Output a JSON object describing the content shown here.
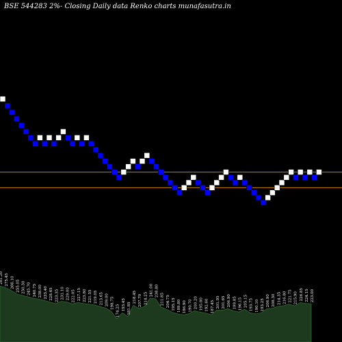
{
  "header": {
    "title": "BSE 544283 2%-  Closing Daily data  Renko  charts munafasutra.in"
  },
  "colors": {
    "background": "#000000",
    "up_brick": "#ffffff",
    "down_brick": "#0000ff",
    "brick_border": "#000000",
    "level_line": "#cc8400",
    "volume_fill": "#1e3a1e",
    "volume_edge": "#2e6a2e"
  },
  "chart_data": {
    "type": "renko",
    "brick_percent": 2,
    "bricks": [
      {
        "dir": "up",
        "close": 273.6
      },
      {
        "dir": "down",
        "close": 268.1
      },
      {
        "dir": "down",
        "close": 262.8
      },
      {
        "dir": "down",
        "close": 257.5
      },
      {
        "dir": "down",
        "close": 252.4
      },
      {
        "dir": "down",
        "close": 247.3
      },
      {
        "dir": "down",
        "close": 242.4
      },
      {
        "dir": "down",
        "close": 237.5
      },
      {
        "dir": "up",
        "close": 242.4
      },
      {
        "dir": "down",
        "close": 237.5
      },
      {
        "dir": "up",
        "close": 242.4
      },
      {
        "dir": "down",
        "close": 237.5
      },
      {
        "dir": "up",
        "close": 242.4
      },
      {
        "dir": "up",
        "close": 247.3
      },
      {
        "dir": "down",
        "close": 242.4
      },
      {
        "dir": "down",
        "close": 237.5
      },
      {
        "dir": "up",
        "close": 242.4
      },
      {
        "dir": "down",
        "close": 237.5
      },
      {
        "dir": "up",
        "close": 242.4
      },
      {
        "dir": "down",
        "close": 237.5
      },
      {
        "dir": "down",
        "close": 232.7
      },
      {
        "dir": "down",
        "close": 228.1
      },
      {
        "dir": "down",
        "close": 223.5
      },
      {
        "dir": "down",
        "close": 219.1
      },
      {
        "dir": "down",
        "close": 214.7
      },
      {
        "dir": "down",
        "close": 210.4
      },
      {
        "dir": "up",
        "close": 214.7
      },
      {
        "dir": "up",
        "close": 219.1
      },
      {
        "dir": "up",
        "close": 223.5
      },
      {
        "dir": "down",
        "close": 219.1
      },
      {
        "dir": "up",
        "close": 223.5
      },
      {
        "dir": "up",
        "close": 228.1
      },
      {
        "dir": "down",
        "close": 223.5
      },
      {
        "dir": "down",
        "close": 219.1
      },
      {
        "dir": "down",
        "close": 214.7
      },
      {
        "dir": "down",
        "close": 210.4
      },
      {
        "dir": "down",
        "close": 206.2
      },
      {
        "dir": "down",
        "close": 202.1
      },
      {
        "dir": "down",
        "close": 198.1
      },
      {
        "dir": "up",
        "close": 202.1
      },
      {
        "dir": "up",
        "close": 206.2
      },
      {
        "dir": "up",
        "close": 210.4
      },
      {
        "dir": "down",
        "close": 206.2
      },
      {
        "dir": "down",
        "close": 202.1
      },
      {
        "dir": "down",
        "close": 198.1
      },
      {
        "dir": "up",
        "close": 202.1
      },
      {
        "dir": "up",
        "close": 206.2
      },
      {
        "dir": "up",
        "close": 210.4
      },
      {
        "dir": "up",
        "close": 214.7
      },
      {
        "dir": "down",
        "close": 210.4
      },
      {
        "dir": "down",
        "close": 206.2
      },
      {
        "dir": "up",
        "close": 210.4
      },
      {
        "dir": "down",
        "close": 206.2
      },
      {
        "dir": "down",
        "close": 202.1
      },
      {
        "dir": "down",
        "close": 198.1
      },
      {
        "dir": "down",
        "close": 194.1
      },
      {
        "dir": "down",
        "close": 190.2
      },
      {
        "dir": "up",
        "close": 194.1
      },
      {
        "dir": "up",
        "close": 198.1
      },
      {
        "dir": "up",
        "close": 202.1
      },
      {
        "dir": "up",
        "close": 206.2
      },
      {
        "dir": "up",
        "close": 210.4
      },
      {
        "dir": "up",
        "close": 214.7
      },
      {
        "dir": "down",
        "close": 210.4
      },
      {
        "dir": "up",
        "close": 214.7
      },
      {
        "dir": "down",
        "close": 210.4
      },
      {
        "dir": "up",
        "close": 214.7
      },
      {
        "dir": "down",
        "close": 210.4
      },
      {
        "dir": "up",
        "close": 214.7
      }
    ],
    "price_range": [
      188,
      276
    ],
    "level_lines": [
      214.7,
      202.1
    ],
    "volume_labels": [
      "281.20",
      "275.45",
      "266.10",
      "255.05",
      "250.30",
      "245.70",
      "240.75",
      "238.00",
      "233.40",
      "228.45",
      "223.35",
      "231.10",
      "229.00",
      "222.05",
      "227.15",
      "223.80",
      "221.55",
      "219.05",
      "213.65",
      "209.00",
      "198.75",
      "174.25",
      "193.45",
      "181.85",
      "218.45",
      "207.70",
      "214.25",
      "241.00",
      "238.80",
      "211.85",
      "204.75",
      "195.15",
      "189.80",
      "186.90",
      "190.70",
      "200.20",
      "195.80",
      "192.60",
      "187.45",
      "201.95",
      "201.65",
      "206.90",
      "199.85",
      "196.15",
      "205.15",
      "193.75",
      "190.10",
      "193.25",
      "206.90",
      "208.30",
      "214.35",
      "216.80",
      "221.75",
      "215.90",
      "226.85",
      "224.15",
      "223.00"
    ]
  }
}
